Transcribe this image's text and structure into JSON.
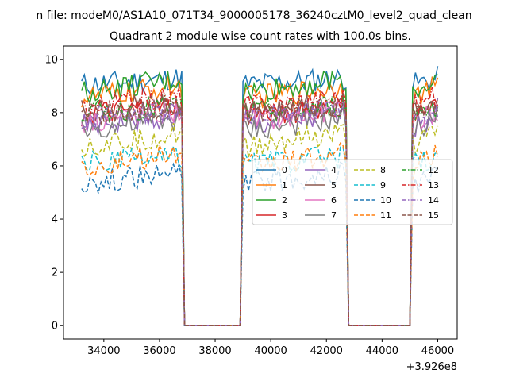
{
  "figure": {
    "suptitle": "n file: modeM0/AS1A10_071T34_9000005178_36240cztM0_level2_quad_clean"
  },
  "chart_data": {
    "type": "line",
    "title": "Quadrant 2 module wise count rates with 100.0s bins.",
    "xlabel": "",
    "ylabel": "",
    "x_offset_label": "+3.926e8",
    "xlim": [
      32550,
      46700
    ],
    "ylim": [
      -0.5,
      10.5
    ],
    "xticks": [
      34000,
      36000,
      38000,
      40000,
      42000,
      44000,
      46000
    ],
    "xtick_labels": [
      "34000",
      "36000",
      "38000",
      "40000",
      "42000",
      "44000",
      "46000"
    ],
    "yticks": [
      0,
      2,
      4,
      6,
      8,
      10
    ],
    "ytick_labels": [
      "0",
      "2",
      "4",
      "6",
      "8",
      "10"
    ],
    "bin_width_s": 100,
    "segments": [
      {
        "start": 33200,
        "end": 36800
      },
      {
        "start": 39000,
        "end": 42700
      },
      {
        "start": 45100,
        "end": 46000
      }
    ],
    "gaps": [
      {
        "start": 36900,
        "end": 38900
      },
      {
        "start": 42800,
        "end": 45000
      }
    ],
    "legend": {
      "placement": "center-right",
      "ncol": 4
    },
    "series": [
      {
        "name": "0",
        "color": "#1f77b4",
        "dash": "solid",
        "level": 9.05,
        "late": 0.25
      },
      {
        "name": "1",
        "color": "#ff7f0e",
        "dash": "solid",
        "level": 8.55,
        "late": 0.45
      },
      {
        "name": "2",
        "color": "#2ca02c",
        "dash": "solid",
        "level": 8.75,
        "late": 0.5
      },
      {
        "name": "3",
        "color": "#d62728",
        "dash": "solid",
        "level": 7.9,
        "late": 0.3
      },
      {
        "name": "4",
        "color": "#9467bd",
        "dash": "solid",
        "level": 7.5,
        "late": 0.4
      },
      {
        "name": "5",
        "color": "#8c564b",
        "dash": "solid",
        "level": 8.05,
        "late": 0.25
      },
      {
        "name": "6",
        "color": "#e377c2",
        "dash": "solid",
        "level": 7.7,
        "late": 0.35
      },
      {
        "name": "7",
        "color": "#7f7f7f",
        "dash": "solid",
        "level": 7.35,
        "late": 0.45
      },
      {
        "name": "8",
        "color": "#bcbd22",
        "dash": "dashed",
        "level": 6.75,
        "late": 0.45
      },
      {
        "name": "9",
        "color": "#17becf",
        "dash": "dashed",
        "level": 6.1,
        "late": 0.25
      },
      {
        "name": "10",
        "color": "#1f77b4",
        "dash": "dashed",
        "level": 5.35,
        "late": 0.4
      },
      {
        "name": "11",
        "color": "#ff7f0e",
        "dash": "dashed",
        "level": 5.95,
        "late": 0.5
      },
      {
        "name": "12",
        "color": "#2ca02c",
        "dash": "dashdot",
        "level": 8.0,
        "late": 0.3
      },
      {
        "name": "13",
        "color": "#d62728",
        "dash": "dashdot",
        "level": 8.25,
        "late": 0.35
      },
      {
        "name": "14",
        "color": "#9467bd",
        "dash": "dashdot",
        "level": 7.75,
        "late": 0.4
      },
      {
        "name": "15",
        "color": "#8c564b",
        "dash": "dashed",
        "level": 7.95,
        "late": 0.3
      }
    ]
  }
}
